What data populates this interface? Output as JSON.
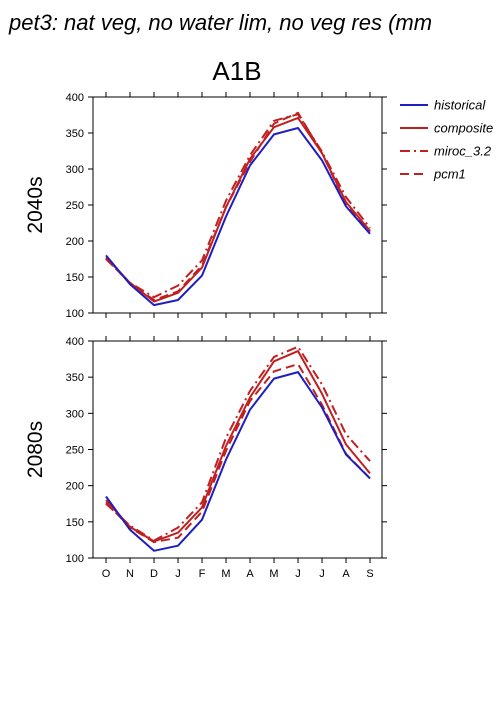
{
  "title": "pet3: nat veg, no water lim, no veg res (mm",
  "chart_data": {
    "type": "line",
    "scenario": "A1B",
    "months": [
      "O",
      "N",
      "D",
      "J",
      "F",
      "M",
      "A",
      "M",
      "J",
      "J",
      "A",
      "S"
    ],
    "ylim": [
      100,
      400
    ],
    "yticks": [
      "100",
      "150",
      "200",
      "250",
      "300",
      "350",
      "400"
    ],
    "colors": {
      "historical": "#1f1fbf",
      "models": "#c02020"
    },
    "legend": [
      {
        "name": "historical",
        "color": "#1f1fbf",
        "dash": "solid"
      },
      {
        "name": "composite",
        "color": "#c02020",
        "dash": "solid"
      },
      {
        "name": "miroc_3.2",
        "color": "#c02020",
        "dash": "dashdot"
      },
      {
        "name": "pcm1",
        "color": "#c02020",
        "dash": "dash"
      }
    ],
    "panels": [
      {
        "label": "2040s",
        "series": [
          {
            "name": "historical",
            "values": [
              180,
              140,
              111,
              118,
              152,
              234,
              305,
              348,
              357,
              312,
              248,
              210
            ]
          },
          {
            "name": "composite",
            "values": [
              177,
              142,
              116,
              128,
              163,
              247,
              314,
              358,
              371,
              322,
              254,
              214
            ]
          },
          {
            "name": "miroc_3.2",
            "values": [
              175,
              142,
              122,
              138,
              173,
              256,
              319,
              367,
              376,
              324,
              261,
              218
            ]
          },
          {
            "name": "pcm1",
            "values": [
              176,
              141,
              118,
              130,
              166,
              247,
              310,
              363,
              378,
              322,
              252,
              213
            ]
          }
        ]
      },
      {
        "label": "2080s",
        "series": [
          {
            "name": "historical",
            "values": [
              185,
              139,
              110,
              117,
              153,
              236,
              305,
              348,
              357,
              308,
              243,
              210
            ]
          },
          {
            "name": "composite",
            "values": [
              180,
              143,
              123,
              135,
              170,
              255,
              322,
              372,
              386,
              327,
              257,
              217
            ]
          },
          {
            "name": "miroc_3.2",
            "values": [
              175,
              145,
              124,
              142,
              177,
              266,
              331,
              378,
              392,
              340,
              271,
              234
            ]
          },
          {
            "name": "pcm1",
            "values": [
              177,
              142,
              122,
              128,
              164,
              248,
              317,
              358,
              368,
              312,
              244,
              210
            ]
          }
        ]
      }
    ]
  }
}
